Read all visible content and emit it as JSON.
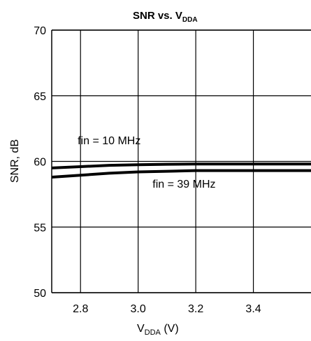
{
  "chart_data": {
    "type": "line",
    "title": {
      "main": "SNR vs. V",
      "sub": "DDA"
    },
    "xlabel": {
      "main": "V",
      "sub": "DDA",
      "unit": " (V)"
    },
    "ylabel": "SNR, dB",
    "xlim": [
      2.7,
      3.6
    ],
    "ylim": [
      50,
      70
    ],
    "x_ticks": [
      2.8,
      3.0,
      3.2,
      3.4
    ],
    "x_tick_labels": [
      "2.8",
      "3.0",
      "3.2",
      "3.4"
    ],
    "y_ticks": [
      50,
      55,
      60,
      65,
      70
    ],
    "y_tick_labels": [
      "50",
      "55",
      "60",
      "65",
      "70"
    ],
    "grid": true,
    "series": [
      {
        "name": "fin = 10 MHz",
        "x": [
          2.7,
          2.8,
          2.9,
          3.0,
          3.1,
          3.2,
          3.3,
          3.4,
          3.5,
          3.6
        ],
        "y": [
          59.5,
          59.6,
          59.7,
          59.75,
          59.78,
          59.8,
          59.8,
          59.8,
          59.8,
          59.8
        ]
      },
      {
        "name": "fin = 39 MHz",
        "x": [
          2.7,
          2.8,
          2.9,
          3.0,
          3.1,
          3.2,
          3.3,
          3.4,
          3.5,
          3.6
        ],
        "y": [
          58.8,
          58.95,
          59.1,
          59.2,
          59.25,
          59.3,
          59.3,
          59.3,
          59.3,
          59.3
        ]
      }
    ],
    "annotations": [
      {
        "text": "fin = 10 MHz",
        "x": 2.79,
        "y": 61.3
      },
      {
        "text": "fin = 39 MHz",
        "x": 3.05,
        "y": 58.0
      }
    ]
  }
}
